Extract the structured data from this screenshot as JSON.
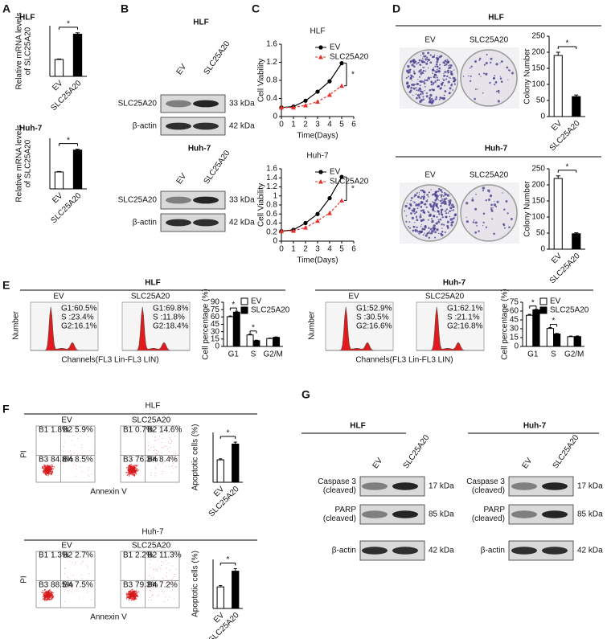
{
  "A": {
    "letter": "A",
    "charts": [
      {
        "type": "bar",
        "title": "HLF",
        "ylabel": [
          "Relative mRNA levels",
          "of SLC25A20"
        ],
        "categories": [
          "EV",
          "SLC25A20"
        ],
        "values": [
          1.0,
          2.5
        ],
        "errors": [
          0.03,
          0.08
        ],
        "colors": [
          "#ffffff",
          "#000000"
        ],
        "ylim": [
          0,
          3
        ],
        "significance": "*"
      },
      {
        "type": "bar",
        "title": "Huh-7",
        "ylabel": [
          "Relative mRNA levels",
          "of SLC25A20"
        ],
        "categories": [
          "EV",
          "SLC25A20"
        ],
        "values": [
          1.0,
          2.3
        ],
        "errors": [
          0.03,
          0.05
        ],
        "colors": [
          "#ffffff",
          "#000000"
        ],
        "ylim": [
          0,
          3
        ],
        "significance": "*"
      }
    ]
  },
  "B": {
    "letter": "B",
    "blots": [
      {
        "title": "HLF",
        "lanes": [
          "EV",
          "SLC25A20"
        ],
        "rows": [
          {
            "label": "SLC25A20",
            "size": "33 kDa"
          },
          {
            "label": "β-actin",
            "size": "42 kDa"
          }
        ]
      },
      {
        "title": "Huh-7",
        "lanes": [
          "EV",
          "SLC25A20"
        ],
        "rows": [
          {
            "label": "SLC25A20",
            "size": "33 kDa"
          },
          {
            "label": "β-actin",
            "size": "42 kDa"
          }
        ]
      }
    ]
  },
  "C": {
    "letter": "C",
    "charts": [
      {
        "type": "line",
        "title": "HLF",
        "ylabel": "Cell Viability",
        "xlabel": "Time(Days)",
        "x": [
          0,
          1,
          2,
          3,
          4,
          5
        ],
        "series": [
          {
            "name": "EV",
            "color": "#000000",
            "marker": "circle",
            "linestyle": "solid",
            "values": [
              0.2,
              0.22,
              0.35,
              0.55,
              0.78,
              1.18
            ]
          },
          {
            "name": "SLC25A20",
            "color": "#e8322e",
            "marker": "triangle",
            "linestyle": "dashed",
            "values": [
              0.2,
              0.2,
              0.25,
              0.33,
              0.48,
              0.68
            ]
          }
        ],
        "xlim": [
          0,
          6
        ],
        "xticks": [
          0,
          1,
          2,
          3,
          4,
          5,
          6
        ],
        "ylim": [
          0,
          1.6
        ],
        "yticks": [
          0,
          0.4,
          0.8,
          1.2,
          1.6
        ],
        "significance": "*"
      },
      {
        "type": "line",
        "title": "Huh-7",
        "ylabel": "Cell Viability",
        "xlabel": "Time(Days)",
        "x": [
          0,
          1,
          2,
          3,
          4,
          5
        ],
        "series": [
          {
            "name": "EV",
            "color": "#000000",
            "marker": "circle",
            "linestyle": "solid",
            "values": [
              0.22,
              0.25,
              0.4,
              0.6,
              0.95,
              1.42
            ]
          },
          {
            "name": "SLC25A20",
            "color": "#e8322e",
            "marker": "triangle",
            "linestyle": "dashed",
            "values": [
              0.22,
              0.23,
              0.3,
              0.45,
              0.62,
              0.9
            ]
          }
        ],
        "xlim": [
          0,
          6
        ],
        "xticks": [
          0,
          1,
          2,
          3,
          4,
          5,
          6
        ],
        "ylim": [
          0,
          1.6
        ],
        "yticks": [
          0,
          0.2,
          0.4,
          0.6,
          0.8,
          1,
          1.2,
          1.4,
          1.6
        ],
        "significance": "*"
      }
    ]
  },
  "D": {
    "letter": "D",
    "groups": [
      {
        "title": "HLF",
        "images": [
          "EV",
          "SLC25A20"
        ],
        "chart": {
          "type": "bar",
          "ylabel": "Colony Number",
          "categories": [
            "EV",
            "SLC25A20"
          ],
          "values": [
            190,
            62
          ],
          "errors": [
            10,
            5
          ],
          "colors": [
            "#ffffff",
            "#000000"
          ],
          "ylim": [
            0,
            250
          ],
          "yticks": [
            0,
            50,
            100,
            150,
            200,
            250
          ],
          "significance": "*"
        }
      },
      {
        "title": "Huh-7",
        "images": [
          "EV",
          "SLC25A20"
        ],
        "chart": {
          "type": "bar",
          "ylabel": "Colony Number",
          "categories": [
            "EV",
            "SLC25A20"
          ],
          "values": [
            220,
            48
          ],
          "errors": [
            8,
            3
          ],
          "colors": [
            "#ffffff",
            "#000000"
          ],
          "ylim": [
            0,
            250
          ],
          "yticks": [
            0,
            50,
            100,
            150,
            200,
            250
          ],
          "significance": "*"
        }
      }
    ]
  },
  "E": {
    "letter": "E",
    "groups": [
      {
        "title": "HLF",
        "histograms": [
          {
            "label": "EV",
            "stats": [
              "G1:60.5%",
              "S :23.4%",
              "G2:16.1%"
            ]
          },
          {
            "label": "SLC25A20",
            "stats": [
              "G1:69.8%",
              "S :11.8%",
              "G2:18.4%"
            ]
          }
        ],
        "ylabel": "Number",
        "xlabel": "Channels(FL3 Lin-FL3 LIN)",
        "chart": {
          "type": "bar",
          "ylabel": "Cell percentage (%)",
          "categories": [
            "G1",
            "S",
            "G2/M"
          ],
          "series": [
            {
              "name": "EV",
              "color": "#ffffff",
              "values": [
                60.5,
                23.4,
                16.1
              ],
              "errors": [
                1.5,
                1.5,
                0.8
              ]
            },
            {
              "name": "SLC25A20",
              "color": "#000000",
              "values": [
                69.8,
                11.8,
                18.4
              ],
              "errors": [
                2,
                1,
                1
              ]
            }
          ],
          "ylim": [
            0,
            90
          ],
          "yticks": [
            0,
            15,
            30,
            45,
            60,
            75,
            90
          ],
          "significance": [
            "*",
            "*",
            null
          ]
        }
      },
      {
        "title": "Huh-7",
        "histograms": [
          {
            "label": "EV",
            "stats": [
              "G1:52.9%",
              "S :30.5%",
              "G2:16.6%"
            ]
          },
          {
            "label": "SLC25A20",
            "stats": [
              "G1:62.1%",
              "S :21.1%",
              "G2:16.8%"
            ]
          }
        ],
        "ylabel": "Number",
        "xlabel": "Channels(FL3 Lin-FL3 LIN)",
        "chart": {
          "type": "bar",
          "ylabel": "Cell percentage (%)",
          "categories": [
            "G1",
            "S",
            "G2/M"
          ],
          "series": [
            {
              "name": "EV",
              "color": "#ffffff",
              "values": [
                52.9,
                30.5,
                16.6
              ],
              "errors": [
                1.5,
                1.5,
                1
              ]
            },
            {
              "name": "SLC25A20",
              "color": "#000000",
              "values": [
                62.1,
                21.1,
                16.8
              ],
              "errors": [
                1,
                1,
                1
              ]
            }
          ],
          "ylim": [
            0,
            75
          ],
          "yticks": [
            0,
            15,
            30,
            45,
            60,
            75
          ],
          "significance": [
            "*",
            "*",
            null
          ]
        }
      }
    ]
  },
  "F": {
    "letter": "F",
    "groups": [
      {
        "title": "HLF",
        "plots": [
          {
            "label": "EV",
            "quadrants": [
              "B1 1.8%",
              "B2 5.9%",
              "B3 84.8%",
              "B4 8.5%"
            ]
          },
          {
            "label": "SLC25A20",
            "quadrants": [
              "B1 0.7%",
              "B2 14.6%",
              "B3 76.3%",
              "B4 8.4%"
            ]
          }
        ],
        "ylabel": "PI",
        "xlabel": "Annexin V",
        "chart": {
          "type": "bar",
          "ylabel": "Apoptotic cells (%)",
          "categories": [
            "EV",
            "SLC25A20"
          ],
          "values": [
            13.5,
            23
          ],
          "errors": [
            0.6,
            1.2
          ],
          "colors": [
            "#ffffff",
            "#000000"
          ],
          "ylim": [
            0,
            30
          ],
          "significance": "*"
        }
      },
      {
        "title": "Huh-7",
        "plots": [
          {
            "label": "EV",
            "quadrants": [
              "B1 1.3%",
              "B2 2.7%",
              "B3 88.5%",
              "B4 7.5%"
            ]
          },
          {
            "label": "SLC25A20",
            "quadrants": [
              "B1 2.2%",
              "B2 11.3%",
              "B3 79.3%",
              "B4 7.2%"
            ]
          }
        ],
        "ylabel": "PI",
        "xlabel": "Annexin V",
        "chart": {
          "type": "bar",
          "ylabel": "Apoptotic cells (%)",
          "categories": [
            "EV",
            "SLC25A20"
          ],
          "values": [
            11,
            19
          ],
          "errors": [
            0.7,
            1.3
          ],
          "colors": [
            "#ffffff",
            "#000000"
          ],
          "ylim": [
            0,
            25
          ],
          "significance": "*"
        }
      }
    ]
  },
  "G": {
    "letter": "G",
    "blots": [
      {
        "title": "HLF",
        "lanes": [
          "EV",
          "SLC25A20"
        ],
        "rows": [
          {
            "label": [
              "Caspase 3",
              "(cleaved)"
            ],
            "size": "17 kDa"
          },
          {
            "label": [
              "PARP",
              "(cleaved)"
            ],
            "size": "85 kDa"
          },
          {
            "label": "β-actin",
            "size": "42 kDa"
          }
        ]
      },
      {
        "title": "Huh-7",
        "lanes": [
          "EV",
          "SLC25A20"
        ],
        "rows": [
          {
            "label": [
              "Caspase 3",
              "(cleaved)"
            ],
            "size": "17 kDa"
          },
          {
            "label": [
              "PARP",
              "(cleaved)"
            ],
            "size": "85 kDa"
          },
          {
            "label": "β-actin",
            "size": "42 kDa"
          }
        ]
      }
    ]
  }
}
